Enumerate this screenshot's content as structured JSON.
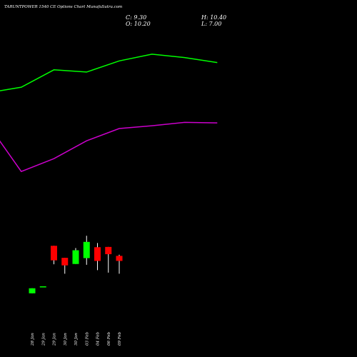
{
  "header": {
    "title": "TARUNTPOWER 1540 CE Options Chart MunafaSutra.com",
    "close": "C: 9.30",
    "high": "H: 10.40",
    "open": "O: 10.20",
    "low": "L: 7.00"
  },
  "colors": {
    "background": "#000000",
    "upper_band": "#00ff00",
    "lower_band": "#cc00cc",
    "bull": "#00ff00",
    "bear": "#ff0000",
    "wick": "#ffffff"
  },
  "chart_data": {
    "type": "candlestick",
    "categories": [
      "28 Jan",
      "29 Jan",
      "29 Jan",
      "30 Jan",
      "30 Jan",
      "03 Feb",
      "04 Feb",
      "06 Feb",
      "09 Feb"
    ],
    "candles": [
      {
        "open": 3.5,
        "high": 4.4,
        "low": 3.5,
        "close": 4.4
      },
      {
        "open": 4.75,
        "high": 4.75,
        "low": 4.75,
        "close": 4.75
      },
      {
        "open": 12.0,
        "high": 12.0,
        "low": 8.7,
        "close": 9.4
      },
      {
        "open": 9.85,
        "high": 9.85,
        "low": 7.0,
        "close": 8.5
      },
      {
        "open": 8.75,
        "high": 11.6,
        "low": 8.75,
        "close": 11.2
      },
      {
        "open": 9.8,
        "high": 13.8,
        "low": 8.6,
        "close": 12.7
      },
      {
        "open": 11.75,
        "high": 12.5,
        "low": 7.65,
        "close": 9.3
      },
      {
        "open": 11.8,
        "high": 11.8,
        "low": 7.2,
        "close": 10.5
      },
      {
        "open": 10.2,
        "high": 10.4,
        "low": 7.0,
        "close": 9.3
      }
    ],
    "series": [
      {
        "color": "#00ff00",
        "x_index": [
          -7,
          -4,
          -1,
          2,
          5,
          8,
          11,
          14,
          17
        ],
        "values": [
          39.4,
          39.4,
          40.4,
          43.5,
          43.1,
          45.1,
          46.3,
          45.7,
          44.8
        ]
      },
      {
        "color": "#cc00cc",
        "x_index": [
          -7,
          -4,
          -1,
          2,
          5,
          8,
          11,
          14,
          17
        ],
        "values": [
          33.6,
          33.6,
          25.3,
          27.6,
          30.8,
          33.0,
          33.5,
          34.1,
          34.0
        ]
      }
    ],
    "ylim": [
      -1,
      56
    ],
    "xlabel": "",
    "ylabel": "",
    "grid": false,
    "legend": "none"
  }
}
